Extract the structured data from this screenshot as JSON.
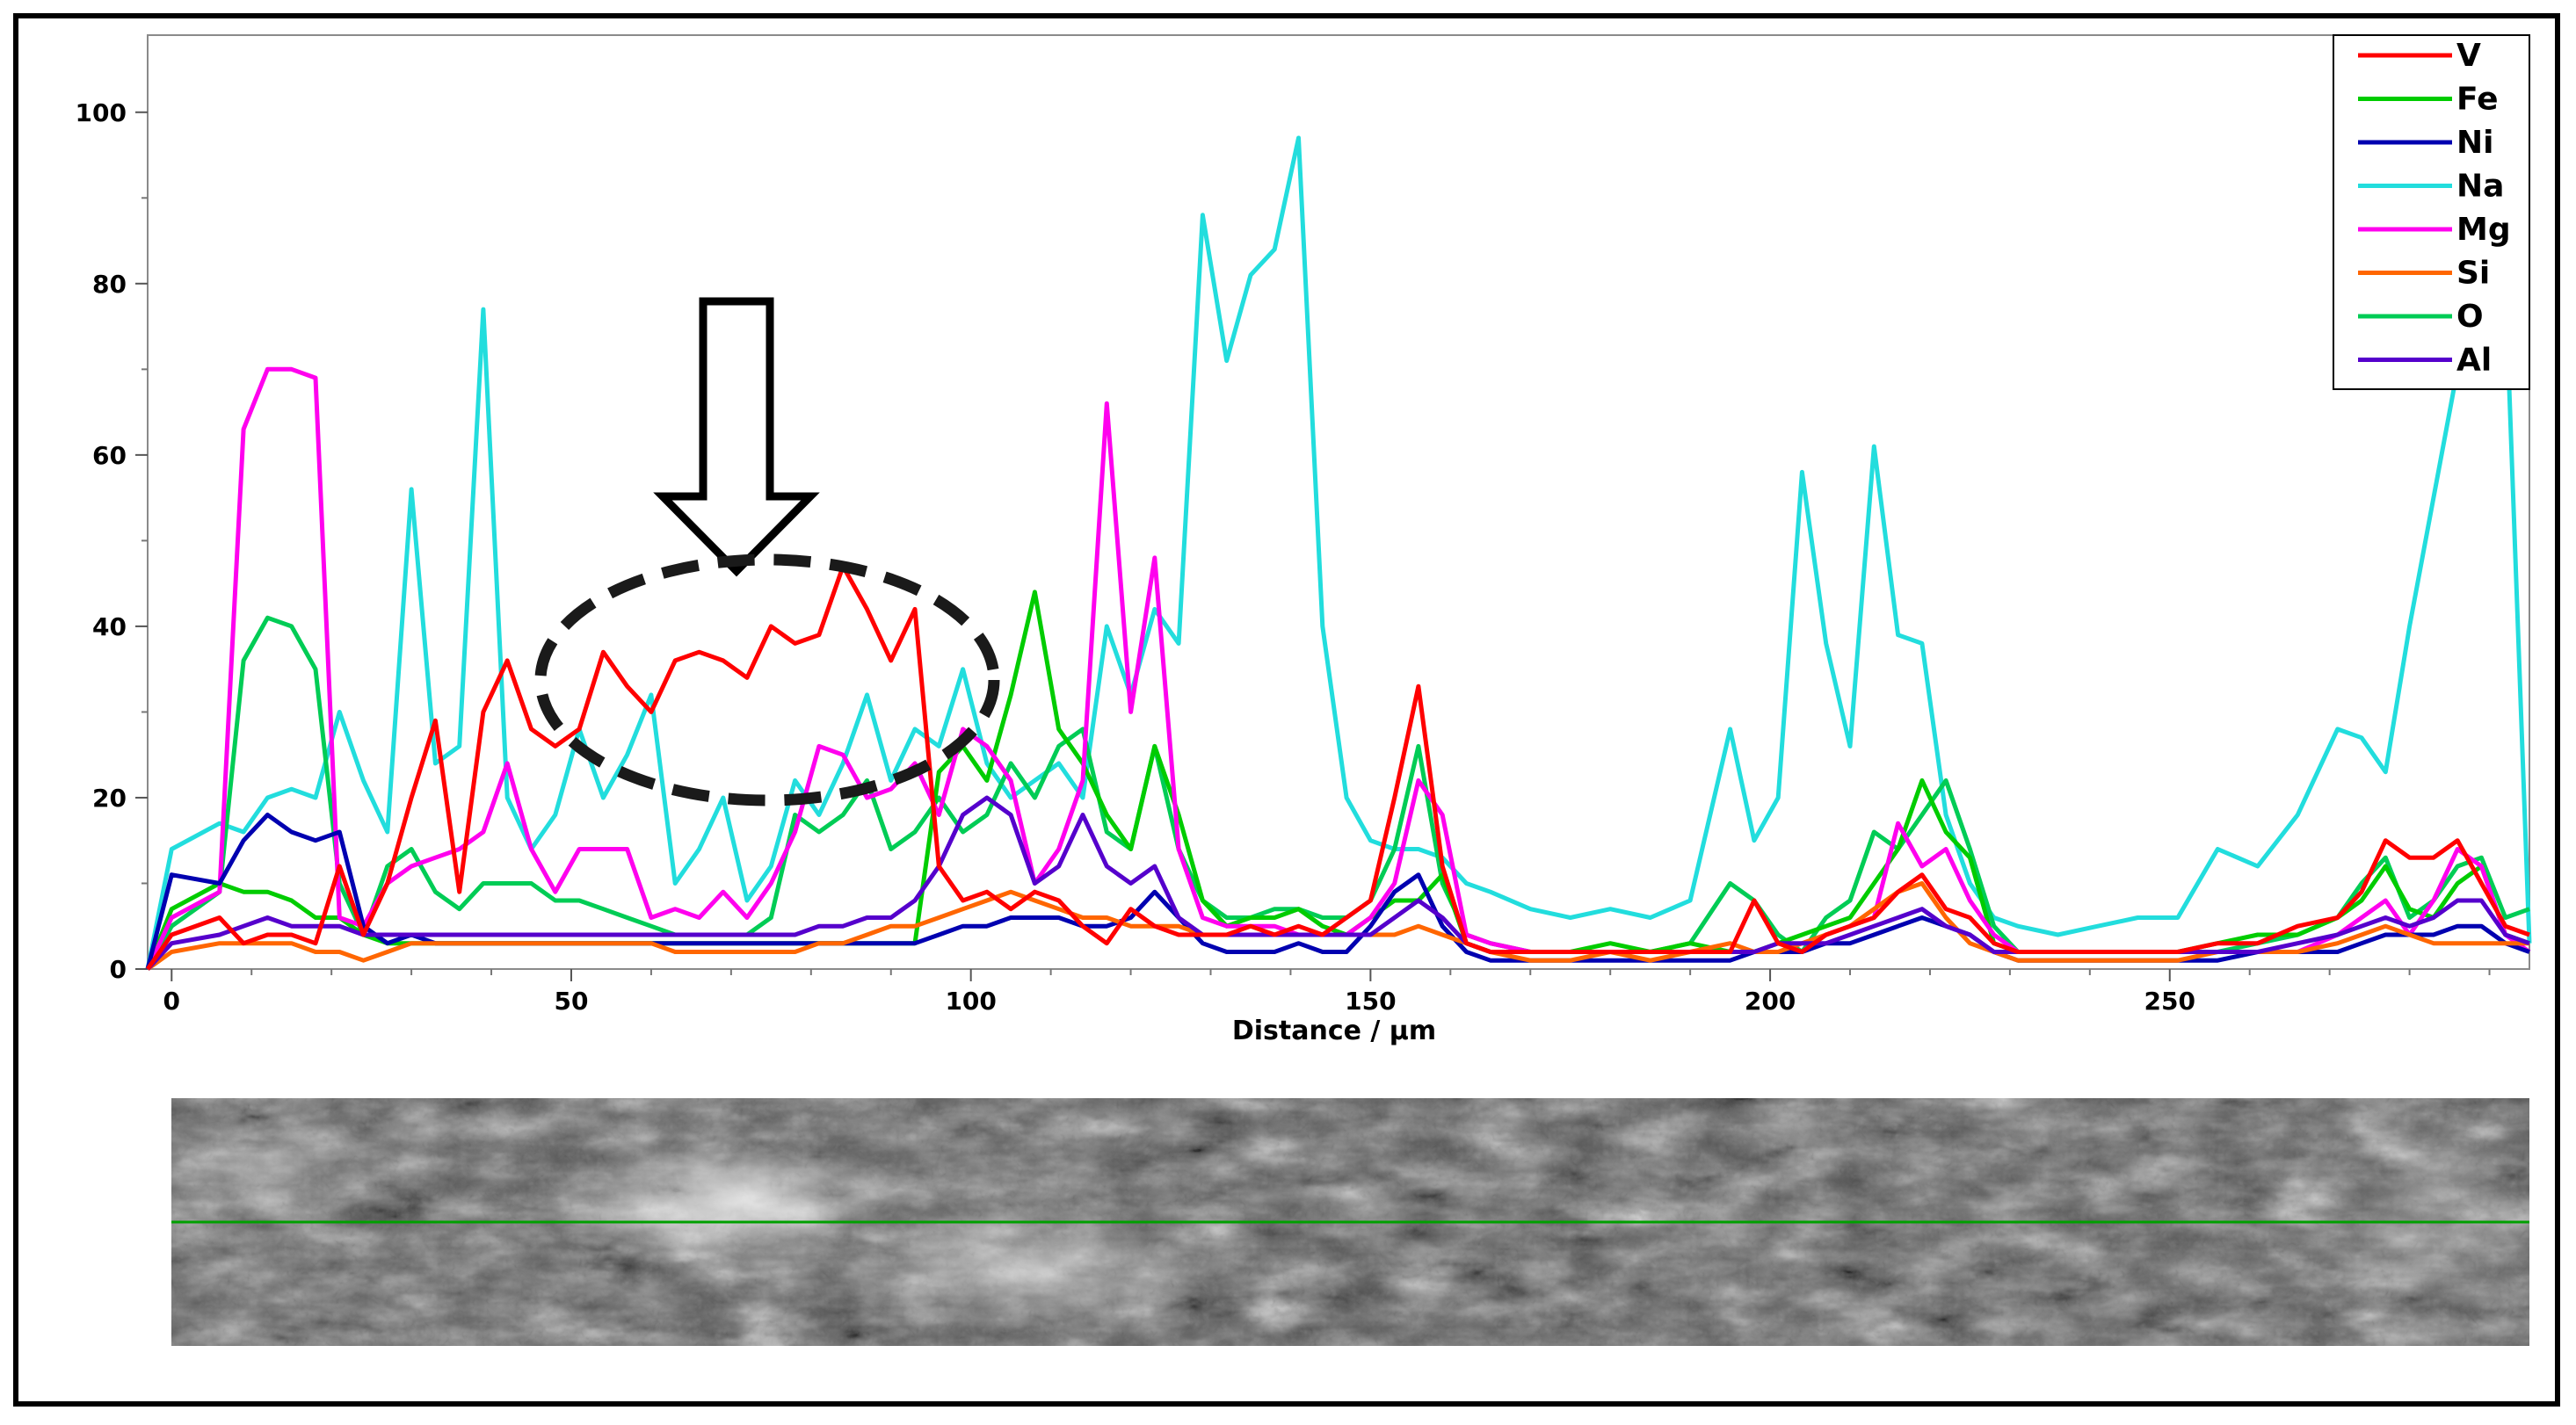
{
  "chart_data": {
    "type": "line",
    "xlabel": "Distance / µm",
    "ylabel": "",
    "xlim": [
      -3,
      295
    ],
    "ylim": [
      0,
      109
    ],
    "x_ticks": [
      0,
      50,
      100,
      150,
      200,
      250
    ],
    "x_tick_labels": [
      "0",
      "50",
      "100",
      "150",
      "200",
      "250"
    ],
    "y_ticks": [
      0,
      20,
      40,
      60,
      80,
      100
    ],
    "y_tick_labels": [
      "0",
      "20",
      "40",
      "60",
      "80",
      "100"
    ],
    "grid": false,
    "legend_position": "top-right",
    "x": [
      -3,
      0,
      6,
      9,
      12,
      15,
      18,
      21,
      24,
      27,
      30,
      33,
      36,
      39,
      42,
      45,
      48,
      51,
      54,
      57,
      60,
      63,
      66,
      69,
      72,
      75,
      78,
      81,
      84,
      87,
      90,
      93,
      96,
      99,
      102,
      105,
      108,
      111,
      114,
      117,
      120,
      123,
      126,
      129,
      132,
      135,
      138,
      141,
      144,
      147,
      150,
      153,
      156,
      159,
      162,
      165,
      170,
      175,
      180,
      185,
      190,
      195,
      198,
      201,
      204,
      207,
      210,
      213,
      216,
      219,
      222,
      225,
      228,
      231,
      236,
      241,
      246,
      251,
      256,
      261,
      266,
      271,
      274,
      277,
      280,
      283,
      286,
      289,
      292,
      295
    ],
    "series": [
      {
        "name": "V",
        "color": "#ff0000",
        "values": [
          0,
          4,
          6,
          3,
          4,
          4,
          3,
          12,
          4,
          10,
          20,
          29,
          9,
          30,
          36,
          28,
          26,
          28,
          37,
          33,
          30,
          36,
          37,
          36,
          34,
          40,
          38,
          39,
          47,
          42,
          36,
          42,
          12,
          8,
          9,
          7,
          9,
          8,
          5,
          3,
          7,
          5,
          4,
          4,
          4,
          5,
          4,
          5,
          4,
          6,
          8,
          20,
          33,
          12,
          3,
          2,
          2,
          2,
          2,
          2,
          2,
          2,
          8,
          3,
          2,
          4,
          5,
          6,
          9,
          11,
          7,
          6,
          3,
          2,
          2,
          2,
          2,
          2,
          3,
          3,
          5,
          6,
          9,
          15,
          13,
          13,
          15,
          10,
          5,
          4
        ]
      },
      {
        "name": "Fe",
        "color": "#00cc00",
        "values": [
          0,
          7,
          10,
          9,
          9,
          8,
          6,
          6,
          4,
          3,
          3,
          3,
          3,
          3,
          3,
          3,
          3,
          3,
          3,
          3,
          3,
          3,
          3,
          3,
          3,
          3,
          3,
          3,
          3,
          3,
          3,
          3,
          23,
          26,
          22,
          32,
          44,
          28,
          24,
          18,
          14,
          26,
          18,
          8,
          5,
          6,
          6,
          7,
          5,
          4,
          6,
          8,
          8,
          11,
          3,
          2,
          2,
          2,
          3,
          2,
          3,
          2,
          2,
          3,
          4,
          5,
          6,
          10,
          14,
          22,
          16,
          13,
          3,
          2,
          2,
          2,
          2,
          2,
          3,
          4,
          4,
          6,
          8,
          12,
          7,
          6,
          10,
          12,
          4,
          3
        ]
      },
      {
        "name": "Ni",
        "color": "#0000b0",
        "values": [
          0,
          11,
          10,
          15,
          18,
          16,
          15,
          16,
          5,
          3,
          4,
          3,
          3,
          3,
          3,
          3,
          3,
          3,
          3,
          3,
          3,
          3,
          3,
          3,
          3,
          3,
          3,
          3,
          3,
          3,
          3,
          3,
          4,
          5,
          5,
          6,
          6,
          6,
          5,
          5,
          6,
          9,
          6,
          3,
          2,
          2,
          2,
          3,
          2,
          2,
          5,
          9,
          11,
          5,
          2,
          1,
          1,
          1,
          1,
          1,
          1,
          1,
          2,
          2,
          2,
          3,
          3,
          4,
          5,
          6,
          5,
          4,
          2,
          1,
          1,
          1,
          1,
          1,
          1,
          2,
          2,
          2,
          3,
          4,
          4,
          4,
          5,
          5,
          3,
          2
        ]
      },
      {
        "name": "Na",
        "color": "#22dddd",
        "values": [
          0,
          14,
          17,
          16,
          20,
          21,
          20,
          30,
          22,
          16,
          56,
          24,
          26,
          77,
          20,
          14,
          18,
          28,
          20,
          25,
          32,
          10,
          14,
          20,
          8,
          12,
          22,
          18,
          24,
          32,
          22,
          28,
          26,
          35,
          24,
          20,
          22,
          24,
          20,
          40,
          32,
          42,
          38,
          88,
          71,
          81,
          84,
          97,
          40,
          20,
          15,
          14,
          14,
          13,
          10,
          9,
          7,
          6,
          7,
          6,
          8,
          28,
          15,
          20,
          58,
          38,
          26,
          61,
          39,
          38,
          18,
          10,
          6,
          5,
          4,
          5,
          6,
          6,
          14,
          12,
          18,
          28,
          27,
          23,
          40,
          55,
          70,
          95,
          80,
          3
        ]
      },
      {
        "name": "Mg",
        "color": "#ff00ee",
        "values": [
          0,
          6,
          9,
          63,
          70,
          70,
          69,
          6,
          5,
          10,
          12,
          13,
          14,
          16,
          24,
          14,
          9,
          14,
          14,
          14,
          6,
          7,
          6,
          9,
          6,
          10,
          16,
          26,
          25,
          20,
          21,
          24,
          18,
          28,
          26,
          22,
          10,
          14,
          22,
          66,
          30,
          48,
          14,
          6,
          5,
          5,
          5,
          4,
          4,
          4,
          6,
          10,
          22,
          18,
          4,
          3,
          2,
          2,
          2,
          2,
          2,
          2,
          2,
          2,
          2,
          4,
          5,
          6,
          17,
          12,
          14,
          8,
          4,
          2,
          2,
          2,
          2,
          2,
          2,
          2,
          2,
          4,
          6,
          8,
          4,
          8,
          14,
          12,
          4,
          2
        ]
      },
      {
        "name": "Si",
        "color": "#ff6600",
        "values": [
          0,
          2,
          3,
          3,
          3,
          3,
          2,
          2,
          1,
          2,
          3,
          3,
          3,
          3,
          3,
          3,
          3,
          3,
          3,
          3,
          3,
          2,
          2,
          2,
          2,
          2,
          2,
          3,
          3,
          4,
          5,
          5,
          6,
          7,
          8,
          9,
          8,
          7,
          6,
          6,
          5,
          5,
          5,
          4,
          4,
          4,
          4,
          4,
          4,
          4,
          4,
          4,
          5,
          4,
          3,
          2,
          1,
          1,
          2,
          1,
          2,
          3,
          2,
          2,
          3,
          4,
          5,
          7,
          9,
          10,
          6,
          3,
          2,
          1,
          1,
          1,
          1,
          1,
          2,
          2,
          2,
          3,
          4,
          5,
          4,
          3,
          3,
          3,
          3,
          3
        ]
      },
      {
        "name": "O",
        "color": "#00cc55",
        "values": [
          0,
          5,
          9,
          36,
          41,
          40,
          35,
          10,
          4,
          12,
          14,
          9,
          7,
          10,
          10,
          10,
          8,
          8,
          7,
          6,
          5,
          4,
          4,
          4,
          4,
          6,
          18,
          16,
          18,
          22,
          14,
          16,
          20,
          16,
          18,
          24,
          20,
          26,
          28,
          16,
          14,
          26,
          14,
          8,
          6,
          6,
          7,
          7,
          6,
          6,
          8,
          14,
          26,
          10,
          4,
          3,
          2,
          2,
          2,
          2,
          3,
          10,
          8,
          4,
          2,
          6,
          8,
          16,
          14,
          18,
          22,
          14,
          5,
          2,
          2,
          2,
          2,
          2,
          2,
          3,
          4,
          6,
          10,
          13,
          6,
          8,
          12,
          13,
          6,
          7
        ]
      },
      {
        "name": "Al",
        "color": "#5500cc",
        "values": [
          0,
          3,
          4,
          5,
          6,
          5,
          5,
          5,
          4,
          4,
          4,
          4,
          4,
          4,
          4,
          4,
          4,
          4,
          4,
          4,
          4,
          4,
          4,
          4,
          4,
          4,
          4,
          5,
          5,
          6,
          6,
          8,
          12,
          18,
          20,
          18,
          10,
          12,
          18,
          12,
          10,
          12,
          6,
          4,
          4,
          4,
          4,
          4,
          4,
          4,
          4,
          6,
          8,
          6,
          3,
          2,
          2,
          2,
          2,
          2,
          2,
          2,
          2,
          3,
          3,
          3,
          4,
          5,
          6,
          7,
          5,
          4,
          2,
          2,
          2,
          2,
          2,
          2,
          2,
          2,
          3,
          4,
          5,
          6,
          5,
          6,
          8,
          8,
          4,
          3
        ]
      }
    ]
  },
  "annotations": {
    "arrow": "down-arrow-outline",
    "ellipse": "dashed-ellipse-highlight",
    "scan_line_color": "#00a000"
  },
  "image_strip": {
    "type": "sem-micrograph",
    "tone": "grayscale"
  }
}
